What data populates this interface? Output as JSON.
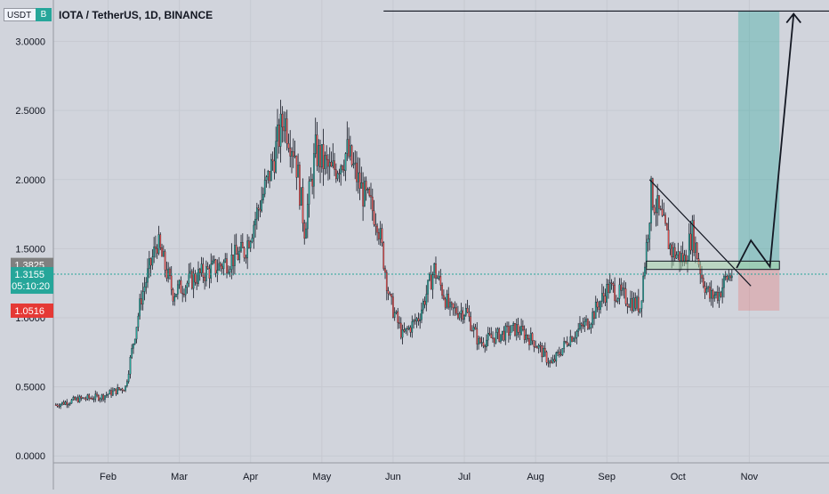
{
  "header": {
    "title": "IOTA / TetherUS, 1D, BINANCE",
    "currency": "USDT"
  },
  "chart_data": {
    "type": "candlestick",
    "title": "IOTA / TetherUS, 1D, BINANCE",
    "ylabel": "USDT",
    "ylim": [
      -0.05,
      3.3
    ],
    "y_ticks": [
      "0.0000",
      "0.5000",
      "1.0000",
      "1.5000",
      "2.0000",
      "2.5000",
      "3.0000"
    ],
    "x_ticks": [
      "Feb",
      "Mar",
      "Apr",
      "May",
      "Jun",
      "Jul",
      "Aug",
      "Sep",
      "Oct",
      "Nov"
    ],
    "price_labels": {
      "upper": "1.3825",
      "current": "1.3155",
      "countdown": "05:10:20",
      "lower": "1.0516"
    },
    "colors": {
      "up": "#26a69a",
      "down": "#ef5350",
      "background": "#d1d4dc",
      "target_zone": "#26a69a",
      "stop_zone": "#ef5350",
      "current_label": "#26a69a",
      "upper_label": "#808080",
      "lower_label": "#e53935"
    },
    "key_points": [
      [
        1,
        0.37
      ],
      [
        15,
        0.41
      ],
      [
        30,
        0.43
      ],
      [
        45,
        0.5
      ],
      [
        55,
        1.15
      ],
      [
        65,
        1.55
      ],
      [
        75,
        1.18
      ],
      [
        90,
        1.3
      ],
      [
        105,
        1.38
      ],
      [
        120,
        1.48
      ],
      [
        135,
        2.0
      ],
      [
        145,
        2.45
      ],
      [
        152,
        2.2
      ],
      [
        158,
        1.65
      ],
      [
        165,
        2.2
      ],
      [
        175,
        2.05
      ],
      [
        185,
        2.2
      ],
      [
        195,
        1.9
      ],
      [
        204,
        1.72
      ],
      [
        212,
        1.12
      ],
      [
        220,
        0.87
      ],
      [
        230,
        1.0
      ],
      [
        240,
        1.35
      ],
      [
        250,
        1.05
      ],
      [
        260,
        1.05
      ],
      [
        268,
        0.82
      ],
      [
        280,
        0.87
      ],
      [
        292,
        0.92
      ],
      [
        303,
        0.83
      ],
      [
        314,
        0.66
      ],
      [
        325,
        0.85
      ],
      [
        338,
        0.98
      ],
      [
        350,
        1.22
      ],
      [
        360,
        1.15
      ],
      [
        370,
        1.08
      ],
      [
        374,
        1.52
      ],
      [
        377,
        1.9
      ],
      [
        383,
        1.72
      ],
      [
        390,
        1.48
      ],
      [
        398,
        1.42
      ],
      [
        403,
        1.62
      ],
      [
        409,
        1.3
      ],
      [
        414,
        1.15
      ],
      [
        420,
        1.18
      ],
      [
        424,
        1.28
      ],
      [
        428,
        1.32
      ]
    ],
    "annotations": {
      "target_price": 3.22,
      "target_line_start_day": 208,
      "entry_zone": [
        1.35,
        1.41
      ],
      "entry_zone_start_day": 374,
      "entry_zone_end_day": 458,
      "target_zone_start_day": 432,
      "target_zone_end_day": 458,
      "stop_price": 1.0516,
      "trendline": [
        [
          376,
          2.0
        ],
        [
          440,
          1.23
        ]
      ],
      "projected_path": [
        [
          431,
          1.36
        ],
        [
          440,
          1.56
        ],
        [
          452,
          1.37
        ],
        [
          467,
          3.2
        ]
      ]
    }
  }
}
